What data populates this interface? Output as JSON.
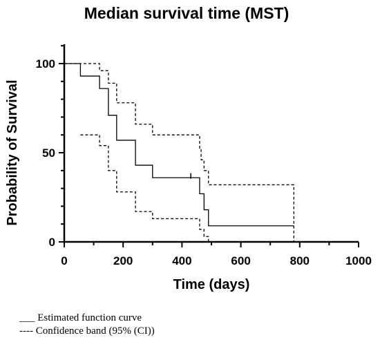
{
  "chart_data": {
    "type": "line",
    "title": "Median survival time (MST)",
    "xlabel": "Time (days)",
    "ylabel": "Probability of Survival",
    "xlim": [
      0,
      1000
    ],
    "ylim": [
      0,
      100
    ],
    "x_ticks": [
      "0",
      "200",
      "400",
      "600",
      "800",
      "1000"
    ],
    "y_ticks": [
      "0",
      "50",
      "100"
    ],
    "grid": false,
    "series": [
      {
        "style": "solid",
        "steps": [
          [
            0,
            100
          ],
          [
            55,
            93
          ],
          [
            120,
            86
          ],
          [
            150,
            71
          ],
          [
            178,
            57
          ],
          [
            242,
            43
          ],
          [
            300,
            36
          ],
          [
            455,
            36
          ],
          [
            460,
            27
          ],
          [
            475,
            18
          ],
          [
            490,
            9
          ],
          [
            780,
            9
          ]
        ]
      },
      {
        "style": "dashed",
        "steps": [
          [
            0,
            100
          ],
          [
            120,
            96
          ],
          [
            150,
            89
          ],
          [
            178,
            78
          ],
          [
            242,
            66
          ],
          [
            300,
            60
          ],
          [
            455,
            60
          ],
          [
            460,
            52
          ],
          [
            465,
            46
          ],
          [
            475,
            40
          ],
          [
            490,
            32
          ],
          [
            780,
            32
          ],
          [
            780,
            0
          ]
        ]
      },
      {
        "style": "dashed",
        "steps": [
          [
            55,
            60
          ],
          [
            120,
            54
          ],
          [
            150,
            40
          ],
          [
            178,
            28
          ],
          [
            242,
            17
          ],
          [
            300,
            13
          ],
          [
            455,
            13
          ],
          [
            460,
            7
          ],
          [
            475,
            3
          ],
          [
            490,
            0
          ],
          [
            780,
            0
          ]
        ]
      }
    ],
    "censor_marks": [
      [
        430,
        37
      ]
    ]
  },
  "legend": {
    "solid_label": "Estimated function curve",
    "dashed_label": "Confidence band (95% (CI))"
  }
}
